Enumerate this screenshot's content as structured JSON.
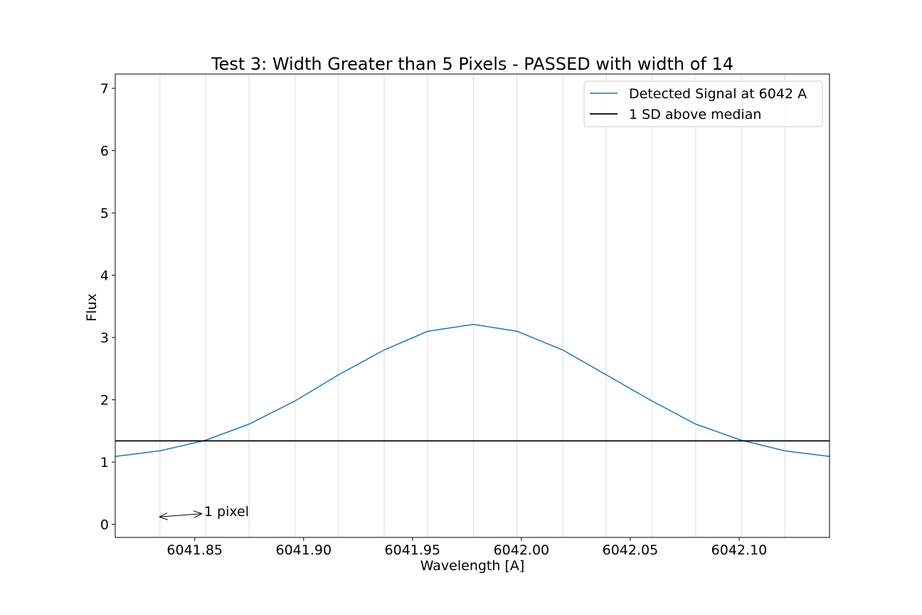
{
  "chart_data": {
    "type": "line",
    "title": "Test 3: Width Greater than 5 Pixels - PASSED with width of 14",
    "xlabel": "Wavelength [A]",
    "ylabel": "Flux",
    "xlim": [
      6041.8135,
      6042.1415
    ],
    "ylim": [
      -0.21,
      7.23
    ],
    "x_ticks": [
      6041.85,
      6041.9,
      6041.95,
      6042.0,
      6042.05,
      6042.1
    ],
    "x_tick_labels": [
      "6041.85",
      "6041.90",
      "6041.95",
      "6042.00",
      "6042.05",
      "6042.10"
    ],
    "y_ticks": [
      0,
      1,
      2,
      3,
      4,
      5,
      6,
      7
    ],
    "y_tick_labels": [
      "0",
      "1",
      "2",
      "3",
      "4",
      "5",
      "6",
      "7"
    ],
    "pixel_boundaries": [
      6041.834,
      6041.855,
      6041.875,
      6041.896,
      6041.916,
      6041.937,
      6041.957,
      6041.978,
      6041.998,
      6042.019,
      6042.039,
      6042.06,
      6042.08,
      6042.101,
      6042.121
    ],
    "series": [
      {
        "name": "Detected Signal at 6042 A",
        "color": "#1f77b4",
        "x": [
          6041.8135,
          6041.834,
          6041.855,
          6041.875,
          6041.896,
          6041.916,
          6041.937,
          6041.957,
          6041.978,
          6041.998,
          6042.019,
          6042.039,
          6042.06,
          6042.08,
          6042.101,
          6042.121,
          6042.1415
        ],
        "y": [
          1.09,
          1.18,
          1.35,
          1.61,
          1.98,
          2.4,
          2.8,
          3.1,
          3.21,
          3.1,
          2.8,
          2.4,
          1.98,
          1.61,
          1.35,
          1.18,
          1.09
        ]
      },
      {
        "name": "1 SD above median",
        "color": "#000000",
        "x": [
          6041.8135,
          6042.1415
        ],
        "y": [
          1.34,
          1.34
        ]
      }
    ],
    "annotation": {
      "text": "1 pixel",
      "arrow_from": [
        6041.834,
        0.12
      ],
      "arrow_to": [
        6041.853,
        0.17
      ]
    },
    "legend_position": "top-right",
    "grid": "vertical lines at pixel boundaries"
  }
}
